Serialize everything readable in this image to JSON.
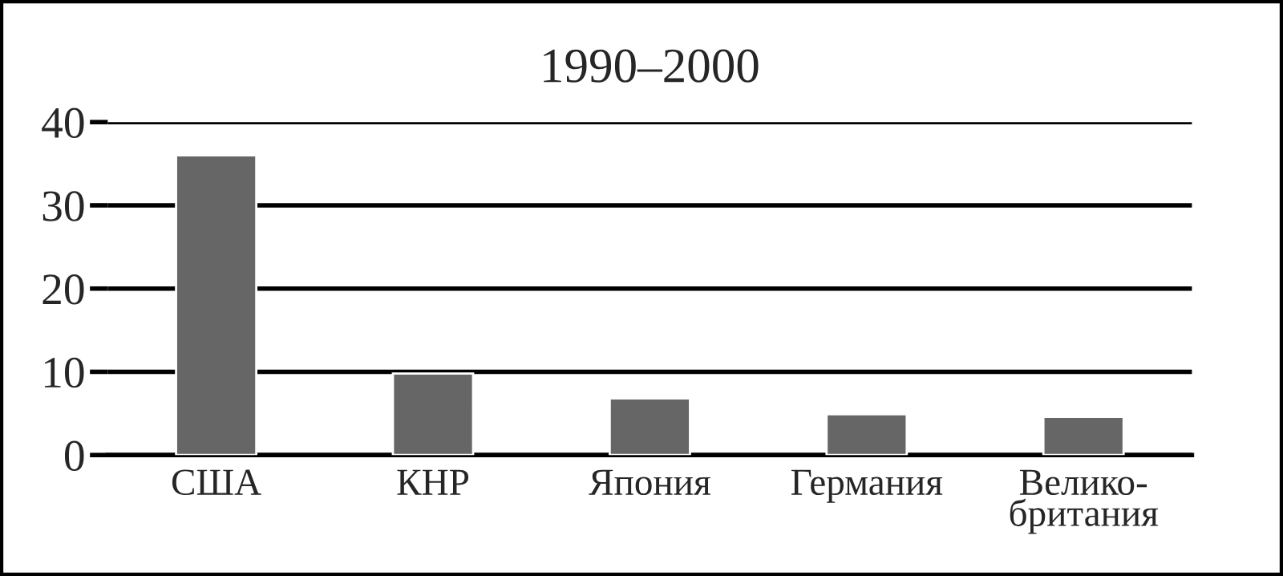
{
  "chart_data": {
    "type": "bar",
    "title": "1990–2000",
    "categories": [
      "США",
      "КНР",
      "Япония",
      "Германия",
      "Велико-\nбритания"
    ],
    "values": [
      36,
      9.8,
      6.8,
      4.9,
      4.6
    ],
    "color": "#666666",
    "ylim": [
      0,
      40
    ],
    "yticks": [
      0,
      10,
      20,
      30,
      40
    ],
    "grid": "y"
  }
}
